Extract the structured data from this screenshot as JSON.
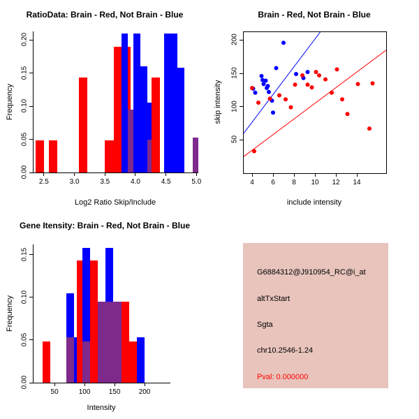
{
  "colors": {
    "red": "#FF0000",
    "blue": "#0000FF",
    "purple": "#7D2A8C",
    "axis": "#000000",
    "info_box_fill": "#E8C4BC",
    "pval_text": "#FF0000"
  },
  "chart_data": [
    {
      "type": "bar",
      "id": "ratio",
      "title": "RatioData: Brain - Red, Not Brain - Blue",
      "xlabel": "Log2 Ratio Skip/Include",
      "ylabel": "Frequency",
      "xlim": [
        2.33,
        5.03
      ],
      "ylim": [
        0,
        0.213
      ],
      "grid": false,
      "xticks": [
        {
          "v": 2.5,
          "label": "2.5"
        },
        {
          "v": 3.0,
          "label": "3.0"
        },
        {
          "v": 3.5,
          "label": "3.5"
        },
        {
          "v": 4.0,
          "label": "4.0"
        },
        {
          "v": 4.5,
          "label": "4.5"
        },
        {
          "v": 5.0,
          "label": "5.0"
        }
      ],
      "yticks": [
        {
          "v": 0.0,
          "label": "0.00"
        },
        {
          "v": 0.05,
          "label": "0.05"
        },
        {
          "v": 0.1,
          "label": "0.10"
        },
        {
          "v": 0.15,
          "label": "0.15"
        },
        {
          "v": 0.2,
          "label": "0.20"
        }
      ],
      "bars": [
        {
          "x0": 2.36,
          "x1": 2.5,
          "h": 0.048,
          "color": "red"
        },
        {
          "x0": 2.58,
          "x1": 2.72,
          "h": 0.048,
          "color": "red"
        },
        {
          "x0": 3.07,
          "x1": 3.21,
          "h": 0.143,
          "color": "red"
        },
        {
          "x0": 3.5,
          "x1": 3.64,
          "h": 0.048,
          "color": "red"
        },
        {
          "x0": 3.64,
          "x1": 3.78,
          "h": 0.19,
          "color": "red"
        },
        {
          "x0": 3.78,
          "x1": 3.92,
          "h": 0.19,
          "color": "red"
        },
        {
          "x0": 3.77,
          "x1": 3.88,
          "h": 0.21,
          "color": "blue"
        },
        {
          "x0": 3.88,
          "x1": 3.97,
          "h": 0.095,
          "color": "purple"
        },
        {
          "x0": 3.97,
          "x1": 4.08,
          "h": 0.21,
          "color": "blue"
        },
        {
          "x0": 4.08,
          "x1": 4.19,
          "h": 0.16,
          "color": "blue"
        },
        {
          "x0": 4.19,
          "x1": 4.3,
          "h": 0.105,
          "color": "blue"
        },
        {
          "x0": 4.19,
          "x1": 4.3,
          "h": 0.05,
          "color": "purple"
        },
        {
          "x0": 4.26,
          "x1": 4.4,
          "h": 0.143,
          "color": "red"
        },
        {
          "x0": 4.47,
          "x1": 4.69,
          "h": 0.21,
          "color": "blue"
        },
        {
          "x0": 4.69,
          "x1": 4.8,
          "h": 0.158,
          "color": "blue"
        },
        {
          "x0": 4.94,
          "x1": 5.03,
          "h": 0.053,
          "color": "purple"
        }
      ]
    },
    {
      "type": "scatter",
      "id": "scatter",
      "title": "Brain - Red, Not Brain - Blue",
      "xlabel": "include intensity",
      "ylabel": "skip intensity",
      "xlim": [
        3.2,
        16.8
      ],
      "ylim": [
        0,
        212
      ],
      "grid": false,
      "xticks": [
        {
          "v": 4,
          "label": "4"
        },
        {
          "v": 6,
          "label": "6"
        },
        {
          "v": 8,
          "label": "8"
        },
        {
          "v": 10,
          "label": "10"
        },
        {
          "v": 12,
          "label": "12"
        },
        {
          "v": 14,
          "label": "14"
        }
      ],
      "yticks": [
        {
          "v": 50,
          "label": "50"
        },
        {
          "v": 100,
          "label": "100"
        },
        {
          "v": 150,
          "label": "150"
        },
        {
          "v": 200,
          "label": "200"
        }
      ],
      "series": [
        {
          "name": "not-brain",
          "color": "blue",
          "points": [
            [
              4.1,
              127
            ],
            [
              4.3,
              121
            ],
            [
              4.9,
              146
            ],
            [
              5.0,
              140
            ],
            [
              5.1,
              134
            ],
            [
              5.3,
              139
            ],
            [
              5.4,
              128
            ],
            [
              5.5,
              131
            ],
            [
              5.6,
              122
            ],
            [
              5.9,
              109
            ],
            [
              6.0,
              91
            ],
            [
              6.3,
              158
            ],
            [
              7.0,
              196
            ],
            [
              8.2,
              149
            ],
            [
              8.9,
              143
            ],
            [
              9.3,
              152
            ]
          ]
        },
        {
          "name": "brain",
          "color": "red",
          "points": [
            [
              4.0,
              128
            ],
            [
              4.2,
              33
            ],
            [
              4.6,
              106
            ],
            [
              5.7,
              112
            ],
            [
              6.6,
              117
            ],
            [
              7.2,
              111
            ],
            [
              7.7,
              99
            ],
            [
              8.1,
              133
            ],
            [
              8.8,
              147
            ],
            [
              9.3,
              133
            ],
            [
              9.7,
              129
            ],
            [
              10.1,
              152
            ],
            [
              10.4,
              147
            ],
            [
              11.0,
              141
            ],
            [
              11.6,
              121
            ],
            [
              12.1,
              156
            ],
            [
              12.6,
              111
            ],
            [
              13.1,
              89
            ],
            [
              14.1,
              134
            ],
            [
              15.2,
              67
            ],
            [
              15.5,
              135
            ]
          ]
        }
      ],
      "lines": [
        {
          "color": "blue",
          "x1": 3.2,
          "y1": 60,
          "x2": 10.5,
          "y2": 212
        },
        {
          "color": "red",
          "x1": 3.2,
          "y1": 25,
          "x2": 16.8,
          "y2": 185
        }
      ]
    },
    {
      "type": "bar",
      "id": "gene",
      "title": "Gene Itensity: Brain - Red, Not Brain - Blue",
      "xlabel": "Intensity",
      "ylabel": "Frequency",
      "xlim": [
        15,
        243
      ],
      "ylim": [
        0,
        0.162
      ],
      "grid": false,
      "xticks": [
        {
          "v": 50,
          "label": "50"
        },
        {
          "v": 100,
          "label": "100"
        },
        {
          "v": 150,
          "label": "150"
        },
        {
          "v": 200,
          "label": "200"
        }
      ],
      "yticks": [
        {
          "v": 0.0,
          "label": "0.00"
        },
        {
          "v": 0.05,
          "label": "0.05"
        },
        {
          "v": 0.1,
          "label": "0.10"
        },
        {
          "v": 0.15,
          "label": "0.15"
        }
      ],
      "bars": [
        {
          "x0": 30,
          "x1": 43,
          "h": 0.048,
          "color": "red"
        },
        {
          "x0": 70,
          "x1": 83,
          "h": 0.105,
          "color": "blue"
        },
        {
          "x0": 70,
          "x1": 83,
          "h": 0.053,
          "color": "purple"
        },
        {
          "x0": 83,
          "x1": 96,
          "h": 0.053,
          "color": "blue"
        },
        {
          "x0": 87,
          "x1": 100,
          "h": 0.143,
          "color": "red"
        },
        {
          "x0": 96,
          "x1": 109,
          "h": 0.158,
          "color": "blue"
        },
        {
          "x0": 96,
          "x1": 109,
          "h": 0.048,
          "color": "purple"
        },
        {
          "x0": 109,
          "x1": 122,
          "h": 0.143,
          "color": "red"
        },
        {
          "x0": 122,
          "x1": 135,
          "h": 0.095,
          "color": "red"
        },
        {
          "x0": 122,
          "x1": 135,
          "h": 0.095,
          "color": "purple"
        },
        {
          "x0": 135,
          "x1": 148,
          "h": 0.158,
          "color": "blue"
        },
        {
          "x0": 135,
          "x1": 148,
          "h": 0.095,
          "color": "purple"
        },
        {
          "x0": 148,
          "x1": 161,
          "h": 0.095,
          "color": "purple"
        },
        {
          "x0": 161,
          "x1": 174,
          "h": 0.095,
          "color": "red"
        },
        {
          "x0": 174,
          "x1": 187,
          "h": 0.048,
          "color": "red"
        },
        {
          "x0": 187,
          "x1": 200,
          "h": 0.053,
          "color": "blue"
        }
      ]
    }
  ],
  "info_box": {
    "lines": [
      "G6884312@J910954_RC@i_at",
      "altTxStart",
      "Sgta",
      "chr10.2546-1.24"
    ],
    "pval": "Pval: 0.000000"
  }
}
